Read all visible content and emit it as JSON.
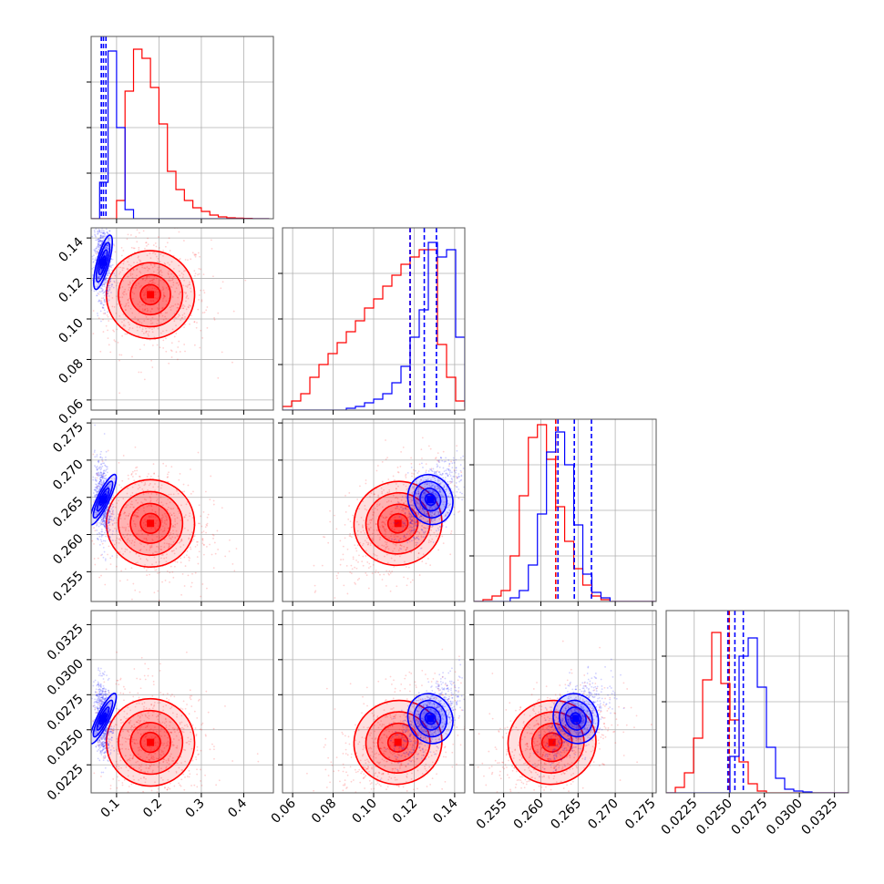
{
  "chart_data": {
    "type": "corner",
    "title": "",
    "grid": true,
    "colors": {
      "red": "#ff0000",
      "blue": "#0000ff",
      "grid": "#b0b0b0",
      "frame": "#555555"
    },
    "params": [
      {
        "range": [
          0.04,
          0.47
        ],
        "ticks": [
          0.1,
          0.2,
          0.3,
          0.4
        ],
        "tick_labels": [
          "0.1",
          "0.2",
          "0.3",
          "0.4"
        ]
      },
      {
        "range": [
          0.055,
          0.145
        ],
        "ticks": [
          0.06,
          0.08,
          0.1,
          0.12,
          0.14
        ],
        "tick_labels": [
          "0.06",
          "0.08",
          "0.10",
          "0.12",
          "0.14"
        ]
      },
      {
        "range": [
          0.251,
          0.2755
        ],
        "ticks": [
          0.255,
          0.26,
          0.265,
          0.27,
          0.275
        ],
        "tick_labels": [
          "0.255",
          "0.260",
          "0.265",
          "0.270",
          "0.275"
        ]
      },
      {
        "range": [
          0.0205,
          0.0335
        ],
        "ticks": [
          0.0225,
          0.025,
          0.0275,
          0.03,
          0.0325
        ],
        "tick_labels": [
          "0.0225",
          "0.0250",
          "0.0275",
          "0.0300",
          "0.0325"
        ]
      }
    ],
    "series": [
      {
        "color": "red",
        "quantile_lines": [
          [],
          [
            0.118
          ],
          [
            0.262
          ],
          [
            0.025
          ]
        ],
        "hist": [
          {
            "start": 0.04,
            "step": 0.02,
            "values": [
              0,
              0,
              0,
              0.1,
              0.7,
              0.93,
              0.88,
              0.72,
              0.52,
              0.26,
              0.16,
              0.1,
              0.06,
              0.04,
              0.02,
              0.01,
              0.005,
              0.003,
              0.002,
              0,
              0
            ]
          },
          {
            "start": 0.055,
            "step": 0.0045,
            "values": [
              0.02,
              0.05,
              0.09,
              0.18,
              0.25,
              0.31,
              0.37,
              0.43,
              0.49,
              0.56,
              0.61,
              0.68,
              0.74,
              0.8,
              0.84,
              0.88,
              0.88,
              0.36,
              0.18,
              0.05,
              0
            ]
          },
          {
            "start": 0.251,
            "step": 0.00122,
            "values": [
              0,
              0.01,
              0.03,
              0.06,
              0.25,
              0.58,
              0.9,
              0.97,
              0.78,
              0.52,
              0.33,
              0.18,
              0.09,
              0.03,
              0.01,
              0,
              0,
              0,
              0,
              0
            ]
          },
          {
            "start": 0.0205,
            "step": 0.00065,
            "values": [
              0,
              0.03,
              0.11,
              0.3,
              0.62,
              0.88,
              0.6,
              0.4,
              0.17,
              0.05,
              0.01,
              0,
              0,
              0,
              0,
              0,
              0,
              0,
              0,
              0
            ]
          }
        ],
        "peak": [
          0.18,
          0.112,
          0.2615,
          0.0241
        ]
      },
      {
        "color": "blue",
        "quantile_lines": [
          [
            0.064,
            0.069,
            0.075
          ],
          [
            0.118,
            0.125,
            0.131
          ],
          [
            0.2623,
            0.2645,
            0.2668
          ],
          [
            0.0249,
            0.0254,
            0.026
          ]
        ],
        "hist": [
          {
            "start": 0.04,
            "step": 0.02,
            "values": [
              0,
              0.2,
              0.92,
              0.5,
              0.05,
              0,
              0,
              0,
              0,
              0,
              0,
              0,
              0,
              0,
              0,
              0,
              0,
              0,
              0,
              0,
              0
            ]
          },
          {
            "start": 0.055,
            "step": 0.0045,
            "values": [
              0,
              0,
              0,
              0,
              0,
              0,
              0,
              0.01,
              0.02,
              0.04,
              0.06,
              0.09,
              0.15,
              0.24,
              0.4,
              0.55,
              0.92,
              0.84,
              0.88,
              0.4,
              0.02
            ]
          },
          {
            "start": 0.251,
            "step": 0.00122,
            "values": [
              0,
              0,
              0,
              0,
              0.02,
              0.06,
              0.2,
              0.48,
              0.82,
              0.93,
              0.75,
              0.42,
              0.15,
              0.05,
              0.02,
              0,
              0,
              0,
              0,
              0
            ]
          },
          {
            "start": 0.0205,
            "step": 0.00065,
            "values": [
              0,
              0,
              0,
              0,
              0,
              0,
              0,
              0.2,
              0.75,
              0.85,
              0.58,
              0.25,
              0.08,
              0.02,
              0.01,
              0.005,
              0,
              0,
              0,
              0
            ]
          }
        ],
        "peak": [
          0.068,
          0.128,
          0.2647,
          0.0258
        ]
      }
    ]
  }
}
